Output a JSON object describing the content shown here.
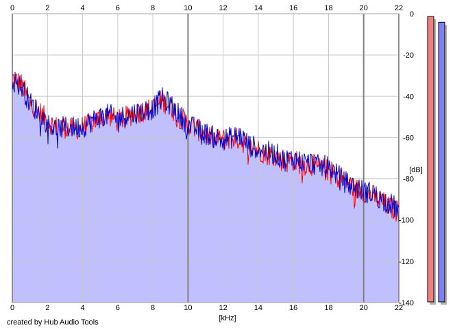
{
  "app": {
    "credit": "created by Hub Audio Tools"
  },
  "colors": {
    "background": "#ffffff",
    "grid": "#c8c8c8",
    "grid_major": "#808080",
    "fill": "#c0c0ff",
    "left_channel": "#ff0000",
    "right_channel": "#0000cc",
    "meter_left": "#f08080",
    "meter_right": "#8080f0",
    "meter_shadow": "#b0b0b0"
  },
  "chart_data": {
    "type": "line",
    "title": "",
    "xlabel": "[kHz]",
    "ylabel": "[dB]",
    "xlim": [
      0,
      22
    ],
    "ylim": [
      -140,
      0
    ],
    "x_ticks": [
      "0",
      "2",
      "4",
      "6",
      "8",
      "10",
      "12",
      "14",
      "16",
      "18",
      "20",
      "22"
    ],
    "y_ticks": [
      "0",
      "-20",
      "-40",
      "-60",
      "-80",
      "-100",
      "-120",
      "-140"
    ],
    "grid": true,
    "legend": "none",
    "x": [
      0,
      0.5,
      1,
      1.5,
      2,
      2.5,
      3,
      3.5,
      4,
      4.5,
      5,
      5.5,
      6,
      6.5,
      7,
      7.5,
      8,
      8.5,
      9,
      9.5,
      10,
      10.5,
      11,
      11.5,
      12,
      12.5,
      13,
      13.5,
      14,
      14.5,
      15,
      15.5,
      16,
      16.5,
      17,
      17.5,
      18,
      18.5,
      19,
      19.5,
      20,
      20.5,
      21,
      21.5,
      22
    ],
    "series": [
      {
        "values": [
          -31,
          -34,
          -43,
          -47,
          -52,
          -55,
          -55,
          -56,
          -55,
          -53,
          -50,
          -49,
          -52,
          -50,
          -48,
          -47,
          -46,
          -42,
          -45,
          -50,
          -53,
          -56,
          -58,
          -61,
          -61,
          -60,
          -61,
          -65,
          -66,
          -68,
          -69,
          -72,
          -71,
          -73,
          -73,
          -75,
          -76,
          -79,
          -81,
          -85,
          -86,
          -88,
          -91,
          -94,
          -96
        ]
      },
      {
        "values": [
          -32,
          -35,
          -43,
          -48,
          -53,
          -56,
          -55,
          -55,
          -55,
          -52,
          -50,
          -49,
          -51,
          -49,
          -48,
          -47,
          -46,
          -41,
          -44,
          -49,
          -54,
          -56,
          -58,
          -60,
          -61,
          -60,
          -59,
          -64,
          -65,
          -67,
          -68,
          -71,
          -70,
          -72,
          -72,
          -74,
          -74,
          -78,
          -82,
          -84,
          -86,
          -87,
          -90,
          -92,
          -95
        ]
      }
    ],
    "meters": [
      {
        "level": 1.0
      },
      {
        "level": 0.98
      }
    ]
  }
}
